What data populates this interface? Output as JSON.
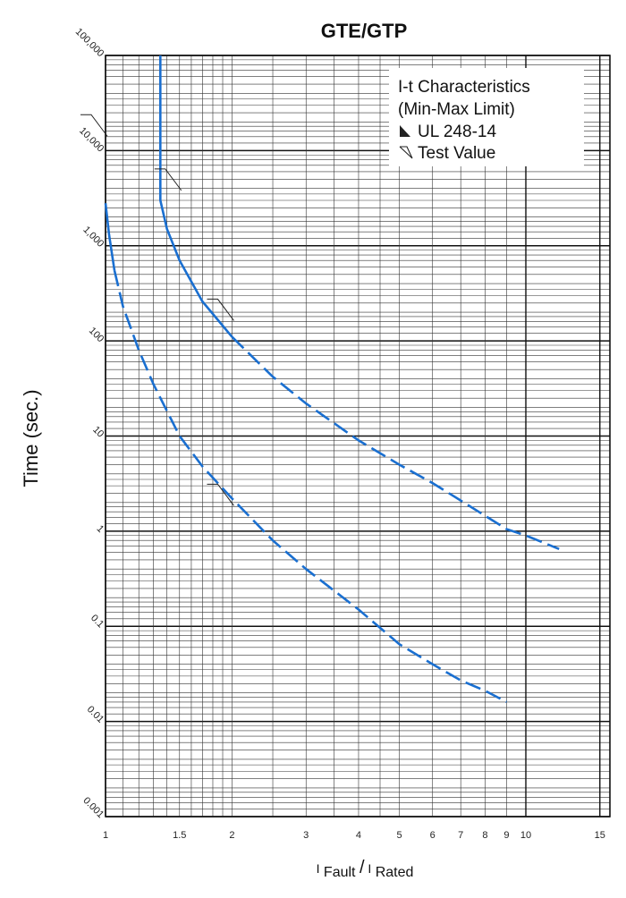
{
  "chart_data": {
    "type": "line",
    "title": "GTE/GTP",
    "ylabel": "Time (sec.)",
    "xlabel_parts": [
      "I",
      "Fault",
      "/",
      "I",
      "Rated"
    ],
    "x_scale": "log",
    "y_scale": "log",
    "xlim": [
      1,
      15
    ],
    "ylim": [
      0.001,
      100000
    ],
    "x_tick_labels": [
      {
        "value": 1,
        "label": "1"
      },
      {
        "value": 1.5,
        "label": "1.5"
      },
      {
        "value": 2,
        "label": "2"
      },
      {
        "value": 3,
        "label": "3"
      },
      {
        "value": 4,
        "label": "4"
      },
      {
        "value": 5,
        "label": "5"
      },
      {
        "value": 6,
        "label": "6"
      },
      {
        "value": 7,
        "label": "7"
      },
      {
        "value": 8,
        "label": "8"
      },
      {
        "value": 9,
        "label": "9"
      },
      {
        "value": 10,
        "label": "10"
      },
      {
        "value": 15,
        "label": "15"
      }
    ],
    "y_tick_labels": [
      {
        "value": 100000,
        "label": "100,000"
      },
      {
        "value": 10000,
        "label": "10,000"
      },
      {
        "value": 1000,
        "label": "1,000"
      },
      {
        "value": 100,
        "label": "100"
      },
      {
        "value": 10,
        "label": "10"
      },
      {
        "value": 1,
        "label": "1"
      },
      {
        "value": 0.1,
        "label": "0.1"
      },
      {
        "value": 0.01,
        "label": "0.01"
      },
      {
        "value": 0.001,
        "label": "0.001"
      }
    ],
    "grid": true,
    "legend": {
      "placement": "top-right",
      "lines": [
        "I-t Characteristics",
        "(Min-Max Limit)"
      ],
      "items": [
        {
          "label": "UL 248-14",
          "marker": "filled-triangle"
        },
        {
          "label": "Test Value",
          "marker": "open-triangle"
        }
      ]
    },
    "series": [
      {
        "color": "#1a6fd0",
        "x": [
          1.35,
          1.35,
          1.4,
          1.5,
          1.7,
          2.0,
          2.5,
          3.0,
          4.0,
          5.0,
          6.0,
          7.0,
          8.0,
          9.0,
          10.0,
          12.0
        ],
        "y": [
          100000,
          3000,
          1500,
          700,
          260,
          110,
          42,
          22,
          9,
          5,
          3.2,
          2.1,
          1.45,
          1.05,
          0.9,
          0.65
        ],
        "solid_until": 2.0
      },
      {
        "color": "#1a6fd0",
        "x": [
          1.0,
          1.02,
          1.05,
          1.1,
          1.2,
          1.3,
          1.5,
          1.7,
          2.0,
          2.5,
          3.0,
          4.0,
          5.0,
          6.0,
          7.0,
          8.0,
          9.0
        ],
        "y": [
          2800,
          1300,
          550,
          230,
          80,
          35,
          10,
          4.8,
          2.2,
          0.8,
          0.4,
          0.15,
          0.065,
          0.04,
          0.027,
          0.021,
          0.016
        ],
        "solid_until": 1.05
      }
    ],
    "test_value_markers": [
      {
        "x": 1.0,
        "y": 13000
      },
      {
        "x": 1.5,
        "y": 3500
      },
      {
        "x": 2.0,
        "y": 150
      },
      {
        "x": 2.0,
        "y": 1.7
      }
    ]
  }
}
